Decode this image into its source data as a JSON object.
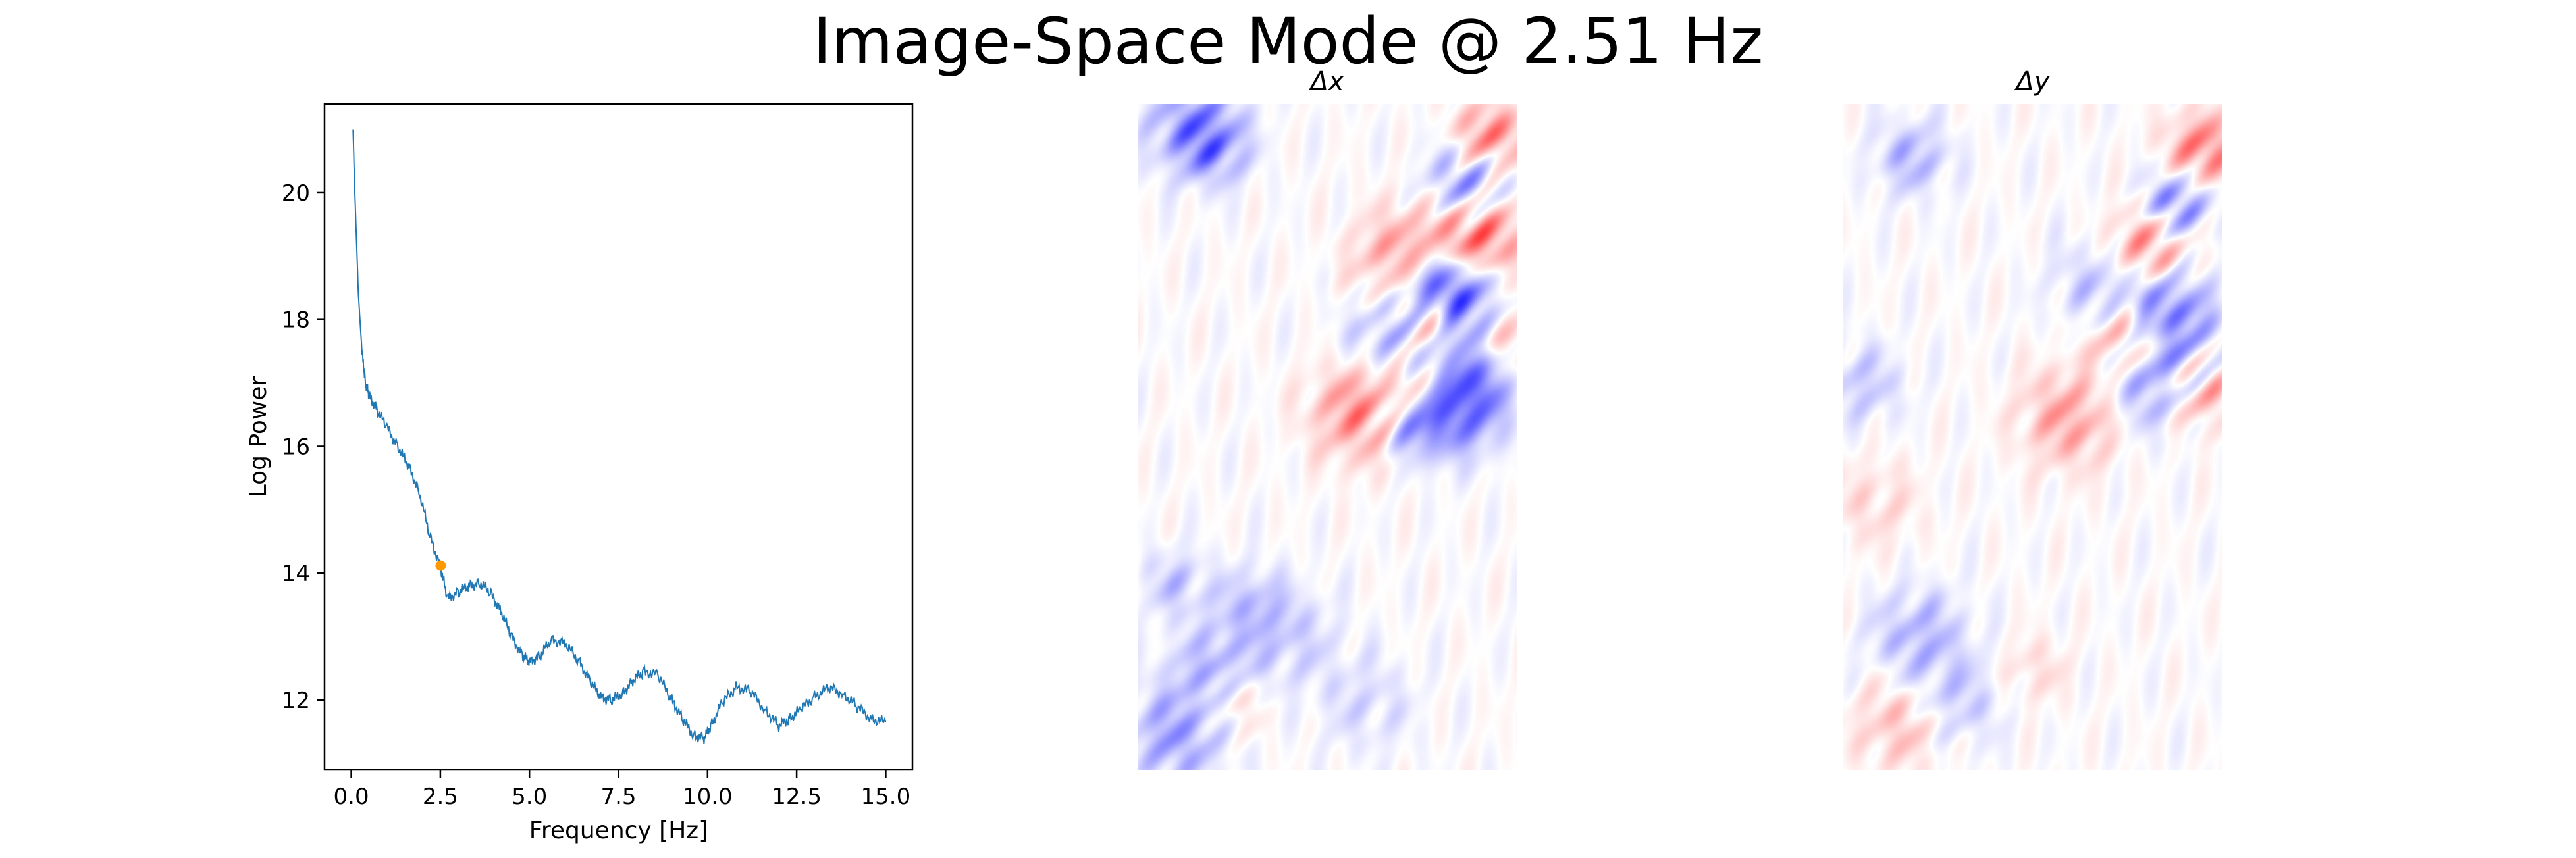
{
  "figure": {
    "suptitle": "Image-Space Mode @ 2.51 Hz"
  },
  "chart_data": [
    {
      "type": "line",
      "xlabel": "Frequency [Hz]",
      "ylabel": "Log Power",
      "xlim": [
        -0.75,
        15.75
      ],
      "ylim": [
        10.9,
        21.4
      ],
      "xticks": [
        0.0,
        2.5,
        5.0,
        7.5,
        10.0,
        12.5,
        15.0
      ],
      "xtick_labels": [
        "0.0",
        "2.5",
        "5.0",
        "7.5",
        "10.0",
        "12.5",
        "15.0"
      ],
      "yticks": [
        12,
        14,
        16,
        18,
        20
      ],
      "ytick_labels": [
        "12",
        "14",
        "16",
        "18",
        "20"
      ],
      "grid": false,
      "series": [
        {
          "color": "#1f77b4",
          "x": [
            0.05,
            0.1,
            0.2,
            0.3,
            0.4,
            0.5,
            0.7,
            1.0,
            1.3,
            1.6,
            1.9,
            2.2,
            2.5,
            2.7,
            3.0,
            3.3,
            3.6,
            3.9,
            4.2,
            4.5,
            4.8,
            5.0,
            5.3,
            5.6,
            6.0,
            6.4,
            6.7,
            7.0,
            7.3,
            7.6,
            7.9,
            8.2,
            8.6,
            9.0,
            9.3,
            9.6,
            9.9,
            10.1,
            10.4,
            10.8,
            11.2,
            11.6,
            12.0,
            12.3,
            12.6,
            13.0,
            13.4,
            13.8,
            14.2,
            14.6,
            15.0
          ],
          "y": [
            21.0,
            20.0,
            18.4,
            17.5,
            17.0,
            16.8,
            16.6,
            16.3,
            16.0,
            15.7,
            15.3,
            14.6,
            14.1,
            13.6,
            13.7,
            13.8,
            13.85,
            13.7,
            13.4,
            13.0,
            12.7,
            12.6,
            12.7,
            12.95,
            12.9,
            12.6,
            12.3,
            12.05,
            12.0,
            12.1,
            12.3,
            12.45,
            12.4,
            12.0,
            11.7,
            11.45,
            11.4,
            11.6,
            11.95,
            12.2,
            12.15,
            11.85,
            11.6,
            11.7,
            11.85,
            12.05,
            12.2,
            12.1,
            11.9,
            11.7,
            11.65
          ]
        }
      ],
      "highlight_point": {
        "x": 2.51,
        "y": 14.12,
        "color": "#ff9900"
      }
    },
    {
      "type": "heatmap",
      "title": "Δx",
      "colormap": "bwr",
      "blobs": [
        {
          "cx": 0.78,
          "cy": 0.27,
          "v": -0.9
        },
        {
          "cx": 0.72,
          "cy": 0.24,
          "v": 0.8
        },
        {
          "cx": 0.85,
          "cy": 0.3,
          "v": -0.8
        },
        {
          "cx": 0.78,
          "cy": 0.33,
          "v": 0.9
        },
        {
          "cx": 0.9,
          "cy": 0.2,
          "v": 0.8
        },
        {
          "cx": 0.87,
          "cy": 0.12,
          "v": -0.6
        },
        {
          "cx": 0.93,
          "cy": 0.05,
          "v": 0.7
        },
        {
          "cx": 0.88,
          "cy": 0.4,
          "v": -0.7
        },
        {
          "cx": 0.75,
          "cy": 0.42,
          "v": 0.7
        },
        {
          "cx": 0.95,
          "cy": 0.36,
          "v": 0.6
        },
        {
          "cx": 0.68,
          "cy": 0.35,
          "v": -0.5
        },
        {
          "cx": 0.83,
          "cy": 0.45,
          "v": -0.7
        },
        {
          "cx": 0.6,
          "cy": 0.46,
          "v": 0.7
        },
        {
          "cx": 0.72,
          "cy": 0.48,
          "v": -0.6
        },
        {
          "cx": 0.15,
          "cy": 0.03,
          "v": -0.6
        },
        {
          "cx": 0.2,
          "cy": 0.07,
          "v": -0.4
        },
        {
          "cx": 0.1,
          "cy": 0.72,
          "v": -0.3
        },
        {
          "cx": 0.2,
          "cy": 0.85,
          "v": -0.4
        },
        {
          "cx": 0.1,
          "cy": 0.95,
          "v": -0.5
        },
        {
          "cx": 0.3,
          "cy": 0.75,
          "v": -0.3
        },
        {
          "cx": 0.25,
          "cy": 0.9,
          "v": 0.3
        },
        {
          "cx": 0.4,
          "cy": 0.8,
          "v": -0.25
        },
        {
          "cx": 0.6,
          "cy": 0.9,
          "v": -0.2
        }
      ]
    },
    {
      "type": "heatmap",
      "title": "Δy",
      "colormap": "bwr",
      "blobs": [
        {
          "cx": 0.8,
          "cy": 0.22,
          "v": 0.7
        },
        {
          "cx": 0.88,
          "cy": 0.15,
          "v": -0.7
        },
        {
          "cx": 0.95,
          "cy": 0.07,
          "v": 0.7
        },
        {
          "cx": 0.85,
          "cy": 0.3,
          "v": -0.6
        },
        {
          "cx": 0.75,
          "cy": 0.35,
          "v": 0.6
        },
        {
          "cx": 0.92,
          "cy": 0.38,
          "v": -0.5
        },
        {
          "cx": 0.93,
          "cy": 0.42,
          "v": 0.8
        },
        {
          "cx": 0.82,
          "cy": 0.42,
          "v": -0.6
        },
        {
          "cx": 0.6,
          "cy": 0.47,
          "v": 0.5
        },
        {
          "cx": 0.7,
          "cy": 0.27,
          "v": -0.4
        },
        {
          "cx": 0.18,
          "cy": 0.08,
          "v": -0.4
        },
        {
          "cx": 0.05,
          "cy": 0.42,
          "v": -0.3
        },
        {
          "cx": 0.2,
          "cy": 0.8,
          "v": -0.4
        },
        {
          "cx": 0.15,
          "cy": 0.93,
          "v": 0.35
        },
        {
          "cx": 0.3,
          "cy": 0.9,
          "v": -0.3
        },
        {
          "cx": 0.08,
          "cy": 0.6,
          "v": 0.2
        },
        {
          "cx": 0.5,
          "cy": 0.85,
          "v": 0.2
        }
      ]
    }
  ]
}
